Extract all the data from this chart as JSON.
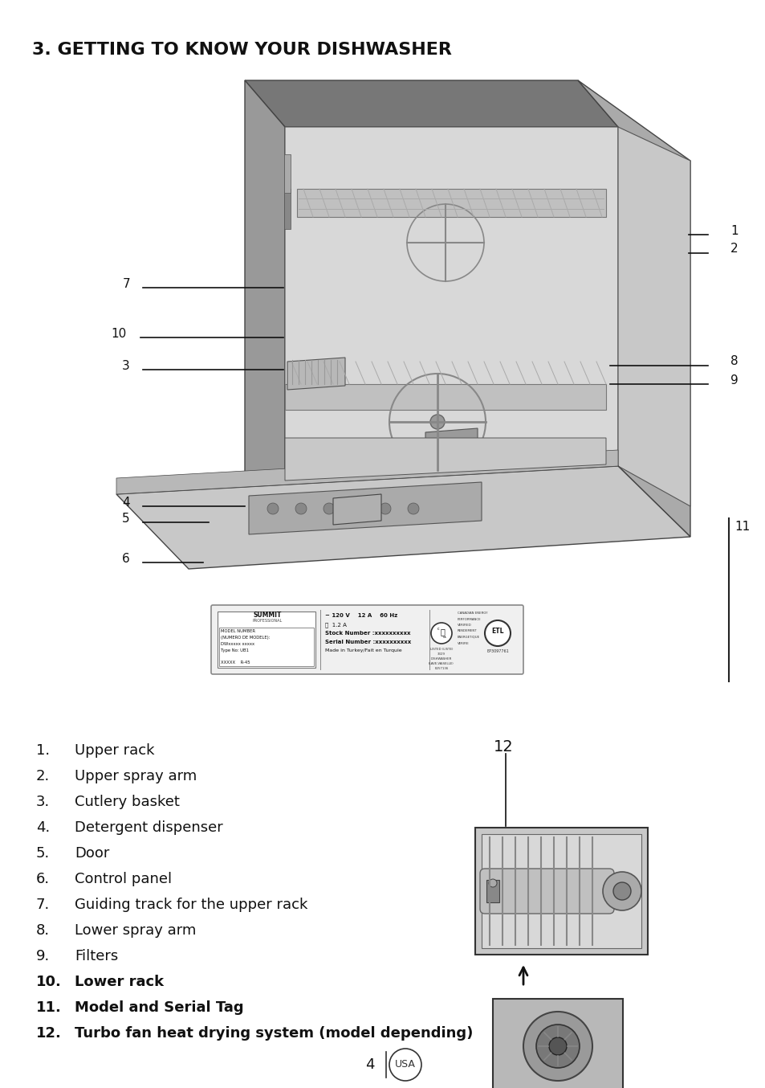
{
  "title": "3. GETTING TO KNOW YOUR DISHWASHER",
  "title_fontsize": 16,
  "background_color": "#ffffff",
  "text_color": "#111111",
  "items": [
    {
      "num": "1.",
      "text": "Upper rack",
      "bold": false
    },
    {
      "num": "2.",
      "text": "Upper spray arm",
      "bold": false
    },
    {
      "num": "3.",
      "text": "Cutlery basket",
      "bold": false
    },
    {
      "num": "4.",
      "text": "Detergent dispenser",
      "bold": false
    },
    {
      "num": "5.",
      "text": "Door",
      "bold": false
    },
    {
      "num": "6.",
      "text": "Control panel",
      "bold": false
    },
    {
      "num": "7.",
      "text": "Guiding track for the upper rack",
      "bold": false
    },
    {
      "num": "8.",
      "text": "Lower spray arm",
      "bold": false
    },
    {
      "num": "9.",
      "text": "Filters",
      "bold": false
    },
    {
      "num": "10.",
      "text": "Lower rack",
      "bold": true
    },
    {
      "num": "11.",
      "text": "Model and Serial Tag",
      "bold": true
    },
    {
      "num": "12.",
      "text": "Turbo fan heat drying system (model depending)",
      "bold": true
    }
  ]
}
